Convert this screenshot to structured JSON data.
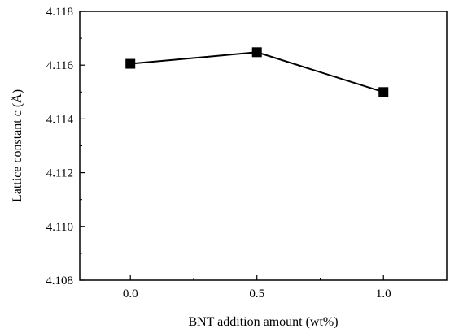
{
  "chart_data": {
    "type": "line",
    "title": "",
    "xlabel": "BNT addition amount (wt%)",
    "ylabel": "Lattice constant c (Å)",
    "xlim": [
      -0.2,
      1.25
    ],
    "ylim": [
      4.108,
      4.118
    ],
    "x_ticks": [
      0.0,
      0.5,
      1.0
    ],
    "x_tick_labels": [
      "0.0",
      "0.5",
      "1.0"
    ],
    "y_ticks": [
      4.108,
      4.11,
      4.112,
      4.114,
      4.116,
      4.118
    ],
    "y_tick_labels": [
      "4.108",
      "4.110",
      "4.112",
      "4.114",
      "4.116",
      "4.118"
    ],
    "grid": false,
    "series": [
      {
        "x": [
          0.0,
          0.5,
          1.0
        ],
        "y": [
          4.11605,
          4.11648,
          4.115
        ],
        "marker": "square",
        "color": "#000000"
      }
    ]
  }
}
